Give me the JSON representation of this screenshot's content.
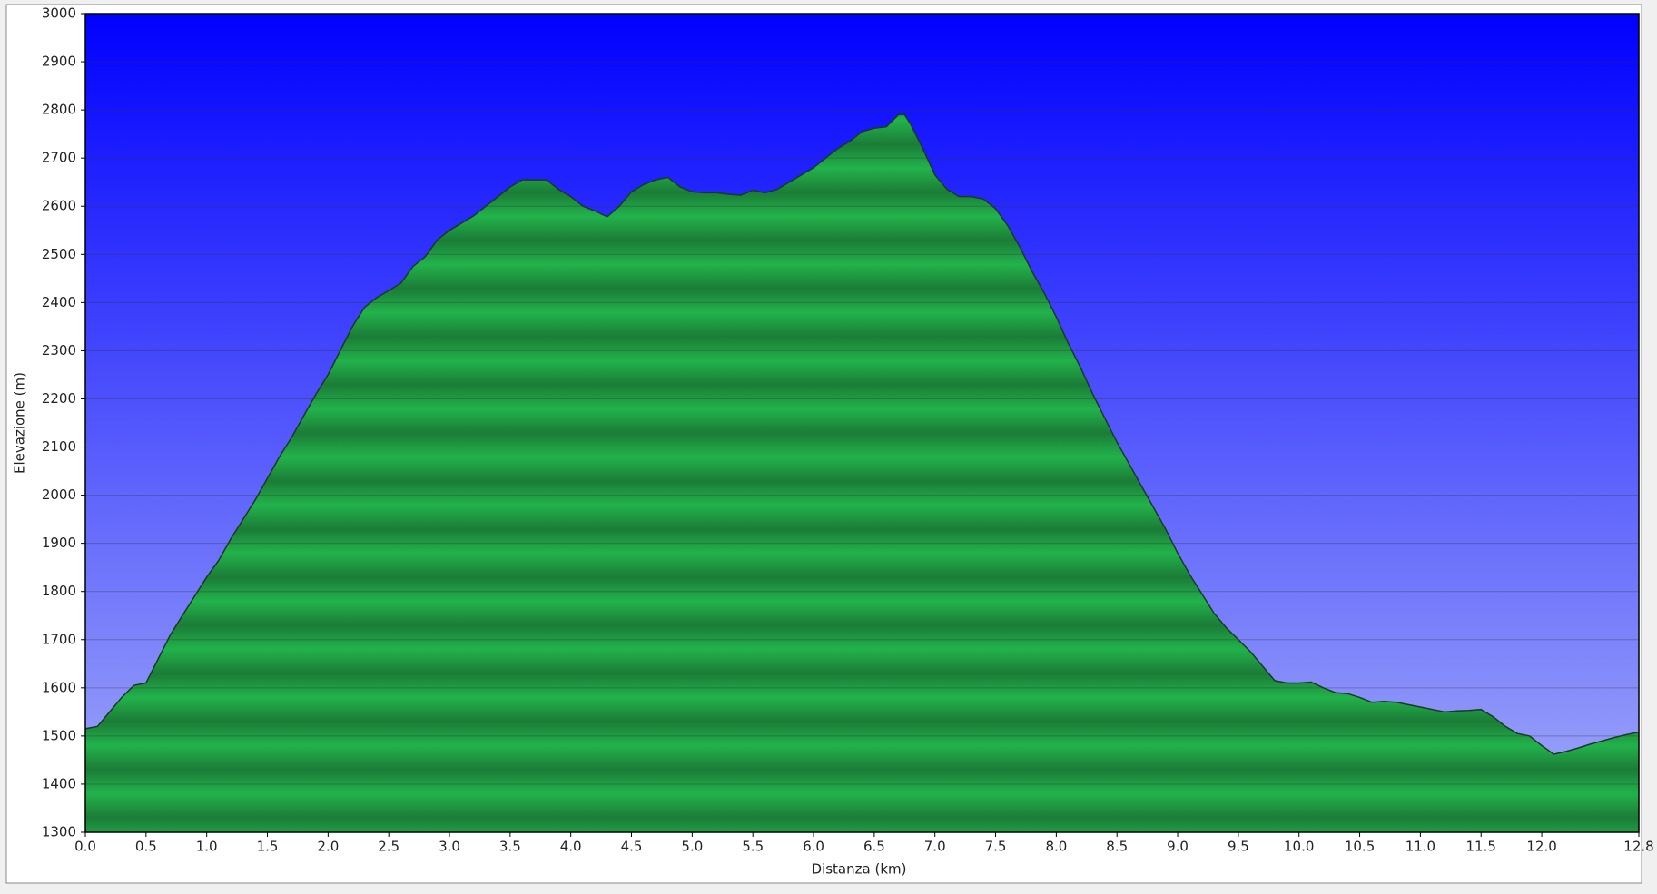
{
  "chart_data": {
    "type": "area",
    "xlabel": "Distanza (km)",
    "ylabel": "Elevazione (m)",
    "x": [
      0.0,
      0.1,
      0.2,
      0.3,
      0.4,
      0.5,
      0.6,
      0.7,
      0.8,
      0.9,
      1.0,
      1.1,
      1.2,
      1.3,
      1.4,
      1.5,
      1.6,
      1.7,
      1.8,
      1.9,
      2.0,
      2.1,
      2.2,
      2.3,
      2.4,
      2.5,
      2.6,
      2.7,
      2.8,
      2.9,
      3.0,
      3.1,
      3.2,
      3.3,
      3.4,
      3.5,
      3.6,
      3.7,
      3.8,
      3.9,
      4.0,
      4.1,
      4.2,
      4.3,
      4.4,
      4.5,
      4.6,
      4.7,
      4.8,
      4.9,
      5.0,
      5.1,
      5.2,
      5.3,
      5.4,
      5.5,
      5.6,
      5.7,
      5.8,
      5.9,
      6.0,
      6.1,
      6.2,
      6.3,
      6.4,
      6.5,
      6.6,
      6.7,
      6.75,
      6.8,
      6.9,
      7.0,
      7.1,
      7.2,
      7.3,
      7.4,
      7.5,
      7.6,
      7.7,
      7.8,
      7.9,
      8.0,
      8.1,
      8.2,
      8.3,
      8.4,
      8.5,
      8.6,
      8.7,
      8.8,
      8.9,
      9.0,
      9.1,
      9.2,
      9.3,
      9.4,
      9.5,
      9.6,
      9.7,
      9.8,
      9.9,
      10.0,
      10.1,
      10.2,
      10.3,
      10.4,
      10.5,
      10.6,
      10.7,
      10.8,
      10.9,
      11.0,
      11.1,
      11.2,
      11.3,
      11.4,
      11.5,
      11.6,
      11.7,
      11.8,
      11.9,
      12.0,
      12.1,
      12.2,
      12.3,
      12.4,
      12.5,
      12.6,
      12.7,
      12.8
    ],
    "values": [
      1515,
      1520,
      1550,
      1580,
      1605,
      1610,
      1660,
      1710,
      1750,
      1790,
      1830,
      1865,
      1910,
      1950,
      1990,
      2035,
      2080,
      2120,
      2165,
      2210,
      2250,
      2300,
      2350,
      2390,
      2410,
      2425,
      2440,
      2475,
      2495,
      2530,
      2550,
      2565,
      2580,
      2600,
      2620,
      2640,
      2655,
      2655,
      2655,
      2635,
      2620,
      2600,
      2590,
      2578,
      2600,
      2630,
      2645,
      2655,
      2660,
      2640,
      2630,
      2628,
      2628,
      2625,
      2623,
      2633,
      2628,
      2635,
      2650,
      2665,
      2680,
      2700,
      2720,
      2735,
      2755,
      2762,
      2765,
      2790,
      2790,
      2770,
      2720,
      2665,
      2635,
      2620,
      2620,
      2615,
      2595,
      2560,
      2515,
      2465,
      2420,
      2370,
      2315,
      2265,
      2210,
      2160,
      2110,
      2065,
      2020,
      1975,
      1930,
      1880,
      1835,
      1795,
      1755,
      1725,
      1700,
      1675,
      1645,
      1615,
      1610,
      1610,
      1612,
      1600,
      1590,
      1588,
      1580,
      1570,
      1572,
      1570,
      1565,
      1560,
      1555,
      1550,
      1552,
      1553,
      1555,
      1540,
      1520,
      1505,
      1500,
      1480,
      1462,
      1468,
      1475,
      1483,
      1490,
      1497,
      1503,
      1508
    ],
    "color": "#22ad48",
    "xlim": [
      0,
      12.8
    ],
    "xticks": [
      {
        "value": 0,
        "label": "0.0"
      },
      0.5,
      {
        "value": 1,
        "label": "1.0"
      },
      1.5,
      {
        "value": 2,
        "label": "2.0"
      },
      2.5,
      {
        "value": 3,
        "label": "3.0"
      },
      3.5,
      {
        "value": 4,
        "label": "4.0"
      },
      4.5,
      {
        "value": 5,
        "label": "5.0"
      },
      5.5,
      {
        "value": 6,
        "label": "6.0"
      },
      6.5,
      {
        "value": 7,
        "label": "7.0"
      },
      7.5,
      {
        "value": 8,
        "label": "8.0"
      },
      8.5,
      {
        "value": 9,
        "label": "9.0"
      },
      9.5,
      {
        "value": 10,
        "label": "10.0"
      },
      10.5,
      {
        "value": 11,
        "label": "11.0"
      },
      11.5,
      {
        "value": 12,
        "label": "12.0"
      },
      12.8
    ],
    "ylim": [
      1300,
      3000
    ],
    "yticks": [
      1300,
      1400,
      1500,
      1600,
      1700,
      1800,
      1900,
      2000,
      2100,
      2200,
      2300,
      2400,
      2500,
      2600,
      2700,
      2800,
      2900,
      3000
    ],
    "grid": true
  }
}
